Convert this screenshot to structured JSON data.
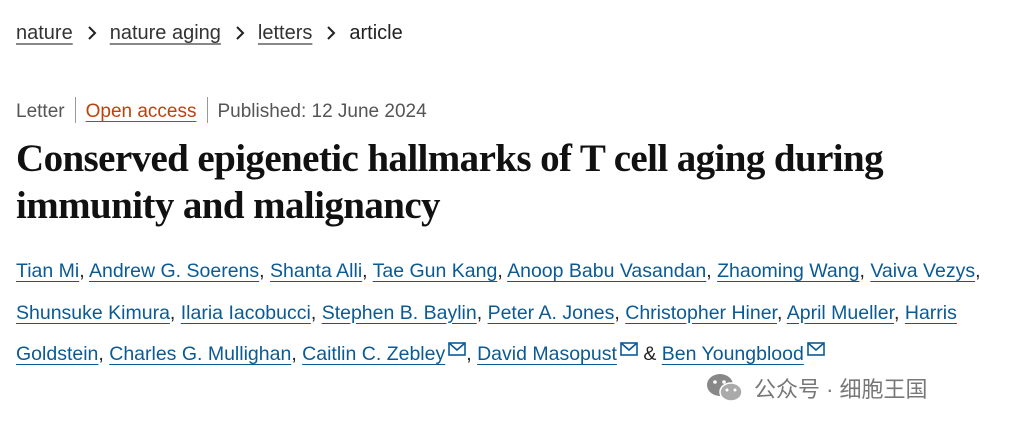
{
  "breadcrumb": [
    "nature",
    "nature aging",
    "letters",
    "article"
  ],
  "meta": {
    "type": "Letter",
    "access": "Open access",
    "published": "Published: 12 June 2024"
  },
  "title": "Conserved epigenetic hallmarks of T cell aging during immunity and malignancy",
  "authors": [
    {
      "name": "Tian Mi"
    },
    {
      "name": "Andrew G. Soerens"
    },
    {
      "name": "Shanta Alli"
    },
    {
      "name": "Tae Gun Kang"
    },
    {
      "name": "Anoop Babu Vasandan"
    },
    {
      "name": "Zhaoming Wang"
    },
    {
      "name": "Vaiva Vezys"
    },
    {
      "name": "Shunsuke Kimura"
    },
    {
      "name": "Ilaria Iacobucci"
    },
    {
      "name": "Stephen B. Baylin"
    },
    {
      "name": "Peter A. Jones"
    },
    {
      "name": "Christopher Hiner"
    },
    {
      "name": "April Mueller"
    },
    {
      "name": "Harris Goldstein"
    },
    {
      "name": "Charles G. Mullighan"
    },
    {
      "name": "Caitlin C. Zebley",
      "email": true
    },
    {
      "name": "David Masopust",
      "email": true
    },
    {
      "name": "Ben Youngblood",
      "email": true
    }
  ],
  "author_separator": ",",
  "author_conjunction": "&",
  "watermark": "公众号 · 细胞王国"
}
